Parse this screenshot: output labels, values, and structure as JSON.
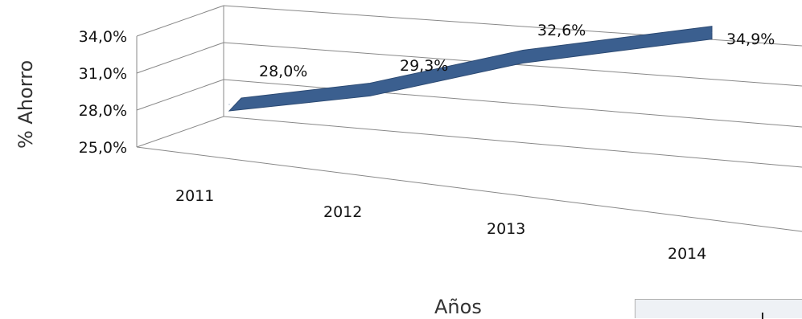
{
  "chart_data": {
    "type": "line",
    "categories": [
      "2011",
      "2012",
      "2013",
      "2014"
    ],
    "values": [
      28.0,
      29.3,
      32.6,
      34.9
    ],
    "value_labels": [
      "28,0%",
      "29,3%",
      "32,6%",
      "34,9%"
    ],
    "y_ticks": [
      "25,0%",
      "28,0%",
      "31,0%",
      "34,0%"
    ],
    "ylim": [
      25.0,
      34.0
    ],
    "ylabel": "% Ahorro",
    "xlabel": "Años",
    "grid": true,
    "style": "3d ribbon",
    "series_color": "#3b5f8f"
  }
}
